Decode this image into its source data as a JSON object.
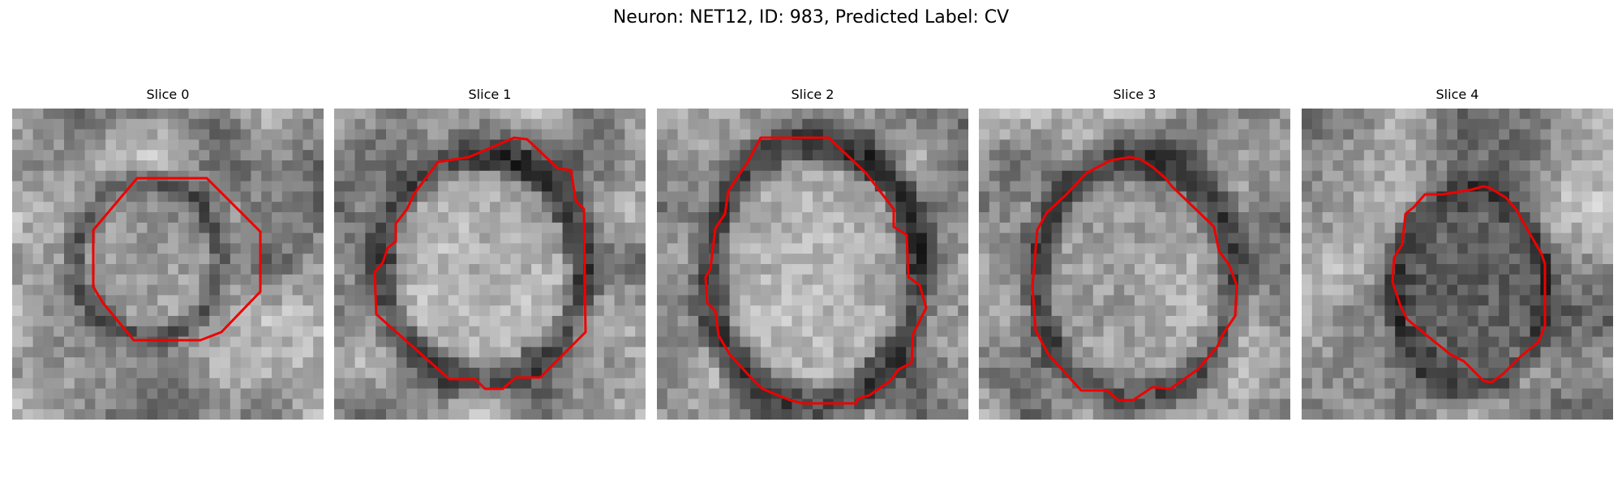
{
  "figure": {
    "title": "Neuron: NET12, ID: 983, Predicted Label: CV",
    "contour_color": "#ee0000"
  },
  "slices": [
    {
      "label": "Slice 0"
    },
    {
      "label": "Slice 1"
    },
    {
      "label": "Slice 2"
    },
    {
      "label": "Slice 3"
    },
    {
      "label": "Slice 4"
    }
  ]
}
